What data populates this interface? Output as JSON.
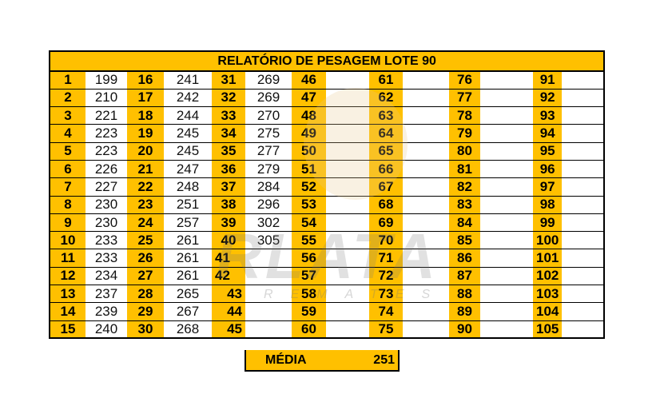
{
  "title": "RELATÓRIO DE PESAGEM LOTE 90",
  "columns": [
    {
      "start": 1,
      "values": [
        "199",
        "210",
        "221",
        "223",
        "223",
        "226",
        "227",
        "230",
        "230",
        "233",
        "233",
        "234",
        "237",
        "239",
        "240"
      ]
    },
    {
      "start": 16,
      "values": [
        "241",
        "242",
        "244",
        "245",
        "245",
        "247",
        "248",
        "251",
        "257",
        "261",
        "261",
        "261",
        "265",
        "267",
        "268"
      ]
    },
    {
      "start": 31,
      "values": [
        "269",
        "269",
        "270",
        "275",
        "277",
        "279",
        "284",
        "296",
        "302",
        "305",
        "",
        "",
        "",
        "",
        ""
      ]
    },
    {
      "start": 46,
      "values": [
        "",
        "",
        "",
        "",
        "",
        "",
        "",
        "",
        "",
        "",
        "",
        "",
        "",
        "",
        ""
      ]
    },
    {
      "start": 61,
      "values": [
        "",
        "",
        "",
        "",
        "",
        "",
        "",
        "",
        "",
        "",
        "",
        "",
        "",
        "",
        ""
      ]
    },
    {
      "start": 76,
      "values": [
        "",
        "",
        "",
        "",
        "",
        "",
        "",
        "",
        "",
        "",
        "",
        "",
        "",
        "",
        ""
      ]
    },
    {
      "start": 91,
      "values": [
        "",
        "",
        "",
        "",
        "",
        "",
        "",
        "",
        "",
        "",
        "",
        "",
        "",
        "",
        ""
      ]
    }
  ],
  "media": {
    "label": "MÉDIA",
    "value": "251"
  },
  "watermark": {
    "logo": "RLATA",
    "sub": "REMATES"
  },
  "colors": {
    "accent": "#FFC000"
  }
}
